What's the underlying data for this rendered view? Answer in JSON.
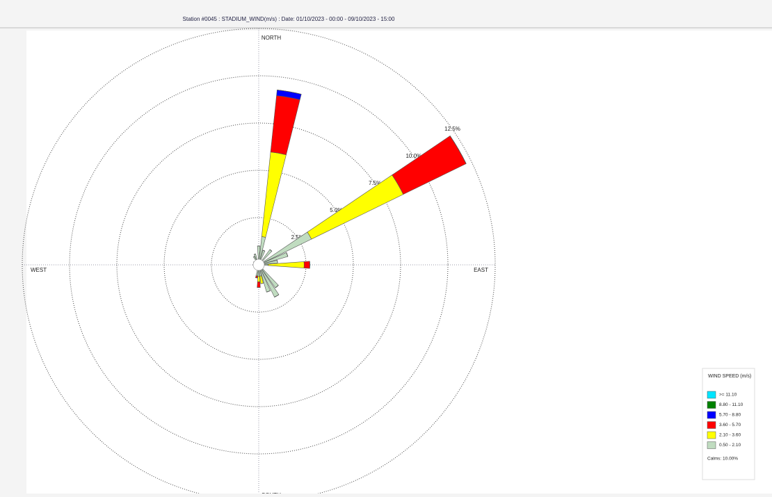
{
  "chart_data": {
    "type": "windrose",
    "title": "Station #0045 : STADIUM_WIND(m/s) : Date: 01/10/2023 - 00:00 - 09/10/2023 - 15:00",
    "direction_labels": [
      "NORTH",
      "EAST",
      "SOUTH",
      "WEST"
    ],
    "directions": [
      0,
      10,
      20,
      40,
      60,
      70,
      80,
      90,
      140,
      150,
      160,
      170,
      180,
      190,
      270,
      300,
      330,
      340
    ],
    "rlim": [
      0,
      12.5
    ],
    "rticks": [
      {
        "value": 2.5,
        "label": "2.5%"
      },
      {
        "value": 5,
        "label": "5.0%"
      },
      {
        "value": 7.5,
        "label": "7.5%"
      },
      {
        "value": 10,
        "label": "10.0%"
      },
      {
        "value": 12.5,
        "label": "12.5%"
      }
    ],
    "legend_title": "WIND SPEED (m/s)",
    "calms": "Calms: 10.00%",
    "series": [
      {
        "name": ">= 11.10",
        "color": "#00e5ff",
        "values": [
          0,
          0,
          0,
          0,
          0,
          0,
          0,
          0,
          0,
          0,
          0,
          0,
          0,
          0,
          0,
          0,
          0,
          0
        ]
      },
      {
        "name": "8.80 - 11.10",
        "color": "#008000",
        "values": [
          0,
          0,
          0,
          0,
          0,
          0,
          0,
          0,
          0,
          0,
          0,
          0,
          0,
          0,
          0,
          0,
          0,
          0
        ]
      },
      {
        "name": "5.70 - 8.80",
        "color": "#0000ff",
        "values": [
          0,
          0.3,
          0,
          0,
          0,
          0,
          0,
          0,
          0,
          0,
          0,
          0,
          0,
          0,
          0,
          0,
          0,
          0
        ]
      },
      {
        "name": "3.60 - 5.70",
        "color": "#ff0000",
        "values": [
          0,
          3.0,
          0,
          0,
          3.7,
          0,
          0,
          0.3,
          0,
          0,
          0,
          0,
          0.3,
          0.1,
          0,
          0,
          0,
          0
        ]
      },
      {
        "name": "2.10 - 3.60",
        "color": "#ffff00",
        "values": [
          0,
          4.5,
          0,
          0,
          5.4,
          0,
          0,
          1.9,
          0,
          0,
          0,
          0.4,
          0.3,
          0,
          0,
          0,
          0,
          0
        ]
      },
      {
        "name": "0.50 - 2.10",
        "color": "#c0dcc0",
        "values": [
          1.0,
          1.5,
          0.8,
          1.0,
          3.1,
          1.6,
          1.0,
          0.5,
          1.5,
          1.9,
          1.5,
          0.6,
          0.6,
          0.6,
          0.3,
          0.3,
          0.5,
          0.6
        ]
      }
    ]
  }
}
